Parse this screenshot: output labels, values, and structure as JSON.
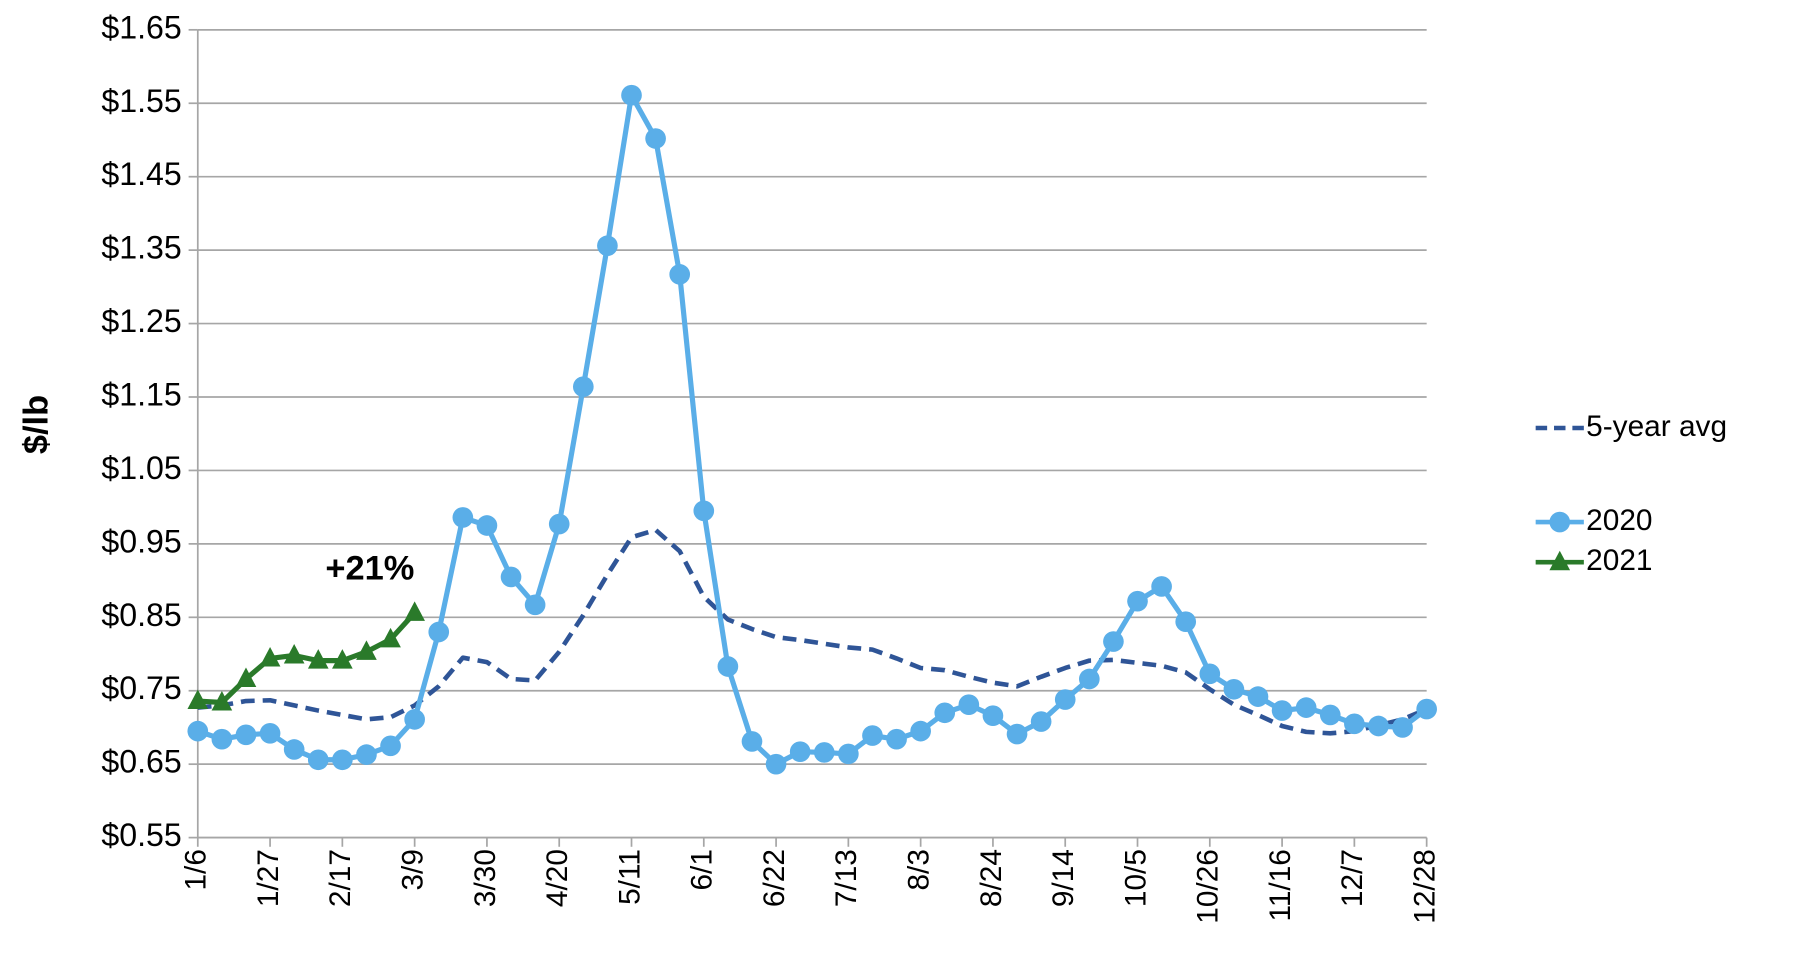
{
  "chart_data": {
    "type": "line",
    "y_label": "$/lb",
    "annotation": "+21%",
    "categories": [
      "1/6",
      null,
      null,
      "1/27",
      null,
      null,
      "2/17",
      null,
      null,
      "3/9",
      null,
      null,
      "3/30",
      null,
      null,
      "4/20",
      null,
      null,
      "5/11",
      null,
      null,
      "6/1",
      null,
      null,
      "6/22",
      null,
      null,
      "7/13",
      null,
      null,
      "8/3",
      null,
      null,
      "8/24",
      null,
      null,
      "9/14",
      null,
      null,
      "10/5",
      null,
      null,
      "10/26",
      null,
      null,
      "11/16",
      null,
      null,
      "12/7",
      null,
      null,
      "12/28"
    ],
    "series": [
      {
        "name": "5-year avg",
        "color": "#2f5597",
        "dash": true,
        "marker": "none",
        "values": [
          0.727,
          0.73,
          0.736,
          0.737,
          0.73,
          0.723,
          0.717,
          0.711,
          0.714,
          0.73,
          0.756,
          0.795,
          0.789,
          0.766,
          0.764,
          0.803,
          0.853,
          0.908,
          0.959,
          0.969,
          0.94,
          0.878,
          0.847,
          0.834,
          0.823,
          0.819,
          0.814,
          0.809,
          0.806,
          0.794,
          0.781,
          0.778,
          0.769,
          0.761,
          0.756,
          0.769,
          0.781,
          0.791,
          0.792,
          0.788,
          0.784,
          0.775,
          0.752,
          0.731,
          0.717,
          0.702,
          0.694,
          0.692,
          0.695,
          0.703,
          0.711,
          0.725
        ]
      },
      {
        "name": "2020",
        "color": "#5aaee8",
        "dash": false,
        "marker": "circle",
        "values": [
          0.695,
          0.684,
          0.69,
          0.692,
          0.67,
          0.656,
          0.656,
          0.663,
          0.675,
          0.711,
          0.83,
          0.986,
          0.975,
          0.905,
          0.867,
          0.977,
          1.164,
          1.356,
          1.561,
          1.502,
          1.317,
          0.995,
          0.783,
          0.681,
          0.65,
          0.667,
          0.666,
          0.664,
          0.689,
          0.684,
          0.695,
          0.72,
          0.731,
          0.716,
          0.691,
          0.708,
          0.738,
          0.766,
          0.817,
          0.872,
          0.892,
          0.844,
          0.773,
          0.752,
          0.742,
          0.723,
          0.727,
          0.717,
          0.705,
          0.702,
          0.7,
          0.725
        ]
      },
      {
        "name": "2021",
        "color": "#2a7a2a",
        "dash": false,
        "marker": "triangle",
        "values": [
          0.736,
          0.734,
          0.766,
          0.794,
          0.798,
          0.791,
          0.791,
          0.803,
          0.82,
          0.856,
          null,
          null,
          null,
          null,
          null,
          null,
          null,
          null,
          null,
          null,
          null,
          null,
          null,
          null,
          null,
          null,
          null,
          null,
          null,
          null,
          null,
          null,
          null,
          null,
          null,
          null,
          null,
          null,
          null,
          null,
          null,
          null,
          null,
          null,
          null,
          null,
          null,
          null,
          null,
          null,
          null,
          null
        ]
      }
    ],
    "ylim": [
      0.55,
      1.65
    ],
    "yticks": [
      {
        "value": 0.55,
        "label": "$0.55"
      },
      {
        "value": 0.65,
        "label": "$0.65"
      },
      {
        "value": 0.75,
        "label": "$0.75"
      },
      {
        "value": 0.85,
        "label": "$0.85"
      },
      {
        "value": 0.95,
        "label": "$0.95"
      },
      {
        "value": 1.05,
        "label": "$1.05"
      },
      {
        "value": 1.15,
        "label": "$1.15"
      },
      {
        "value": 1.25,
        "label": "$1.25"
      },
      {
        "value": 1.35,
        "label": "$1.35"
      },
      {
        "value": 1.45,
        "label": "$1.45"
      },
      {
        "value": 1.55,
        "label": "$1.55"
      },
      {
        "value": 1.65,
        "label": "$1.65"
      }
    ],
    "grid": true,
    "legend": "right"
  }
}
